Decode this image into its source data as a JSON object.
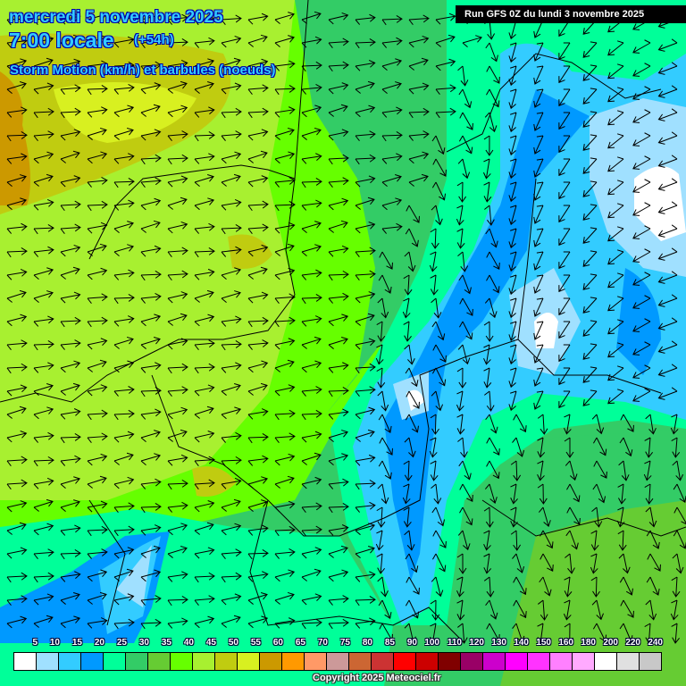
{
  "header": {
    "date": "mercredi 5 novembre 2025",
    "time": "7:00 locale",
    "lead": "(+54h)",
    "parameter": "Storm Motion (km/h) et barbules (noeuds)",
    "run": "Run GFS 0Z du lundi 3 novembre 2025"
  },
  "legend": {
    "labels": [
      "5",
      "10",
      "15",
      "20",
      "25",
      "30",
      "35",
      "40",
      "45",
      "50",
      "55",
      "60",
      "65",
      "70",
      "75",
      "80",
      "85",
      "90",
      "100",
      "110",
      "120",
      "130",
      "140",
      "150",
      "160",
      "180",
      "200",
      "220",
      "240"
    ],
    "colors": [
      "#ffffff",
      "#a0e0ff",
      "#33ccff",
      "#0099ff",
      "#00ff99",
      "#33cc66",
      "#66cc33",
      "#66ff00",
      "#a8f030",
      "#c0cc10",
      "#d8f020",
      "#cc9900",
      "#ff9900",
      "#ff9966",
      "#cc9999",
      "#cc6633",
      "#cc3333",
      "#ff0000",
      "#cc0000",
      "#800000",
      "#990066",
      "#cc00cc",
      "#ff00ff",
      "#ff33ff",
      "#ff80ff",
      "#ffaaff",
      "#ffffff",
      "#e0e0e0",
      "#c8c8c8"
    ]
  },
  "copyright": "Copyright 2025 Meteociel.fr"
}
